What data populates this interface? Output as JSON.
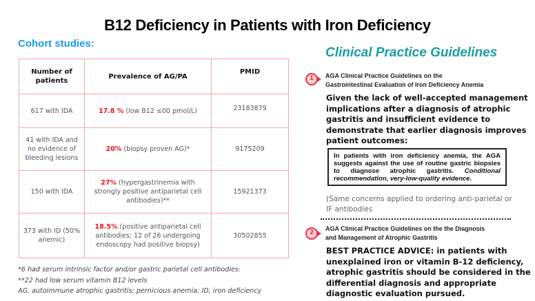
{
  "title": "B12 Deficiency in Patients with Iron Deficiency",
  "left": {
    "heading": "Cohort studies:",
    "table": {
      "headers": [
        "Number of patients",
        "Prevalence of AG/PA",
        "PMID"
      ],
      "rows": [
        {
          "patients": "617 with IDA",
          "pct": "17.8 %",
          "detail": " (low B12 ≤00 pmol/L)",
          "pmid": "23183879"
        },
        {
          "patients": "41 with IDA and no evidence of bleeding lesions",
          "pct": "20%",
          "detail": " (biopsy proven AG)*",
          "pmid": "9175209"
        },
        {
          "patients": "150 with IDA",
          "pct": "27%",
          "detail": " (hypergastrinemia with strongly positive antiparietal cell antibodies)**",
          "pmid": "15921373"
        },
        {
          "patients": "373 with ID (50% anemic)",
          "pct": "18.5%",
          "detail": " (positive antiparietal cell antibodies; 12 of 26 undergoing endoscopy had positive biopsy)",
          "pmid": "30502855"
        }
      ]
    },
    "footnotes": [
      "*6 had serum intrinsic factor and/or gastric parietal cell antibodies:",
      "**22 had low serum vitamin B12 levels",
      "AG, autoimmune atrophic gastritis; pernicious anemia; ID, iron deficiency"
    ]
  },
  "right": {
    "heading": "Clinical Practice Guidelines",
    "g1": {
      "num": "1",
      "title1": "AGA Clinical Practice Guidelines on the",
      "title2": "Gastrointestinal Evaluation of Iron Deficiency Anemia",
      "body": "Given the lack of well-accepted management implications after a diagnosis of atrophic gastritis and insufficient evidence to demonstrate that earlier diagnosis improves patient outcomes:",
      "box_main": "In patients with iron deficiency anemia, the AGA suggests against the use of routine gastric biopsies to diagnose atrophic gastritis. ",
      "box_italic": "Conditional recommendation, very-low-quality evidence",
      "box_end": ".",
      "note": "(Same concerns applied to ordering anti-parietal or IF antibodies"
    },
    "g2": {
      "num": "2",
      "title1": "AGA Clinical Practice Guidelines on the the Diagnosis",
      "title2": "and  Management of Atrophic Gastritis",
      "body": "BEST PRACTICE ADVICE:  in patients with unexplained iron or vitamin B-12 deficiency, atrophic gastritis should be considered in the differential diagnosis and appropriate diagnostic evaluation pursued."
    }
  },
  "colors": {
    "title_blue": "#1a9be6",
    "guideline_teal": "#1a9e9e",
    "highlight_red": "#e8141b",
    "table_border": "#f4a6a6",
    "badge": "#e8334a"
  }
}
